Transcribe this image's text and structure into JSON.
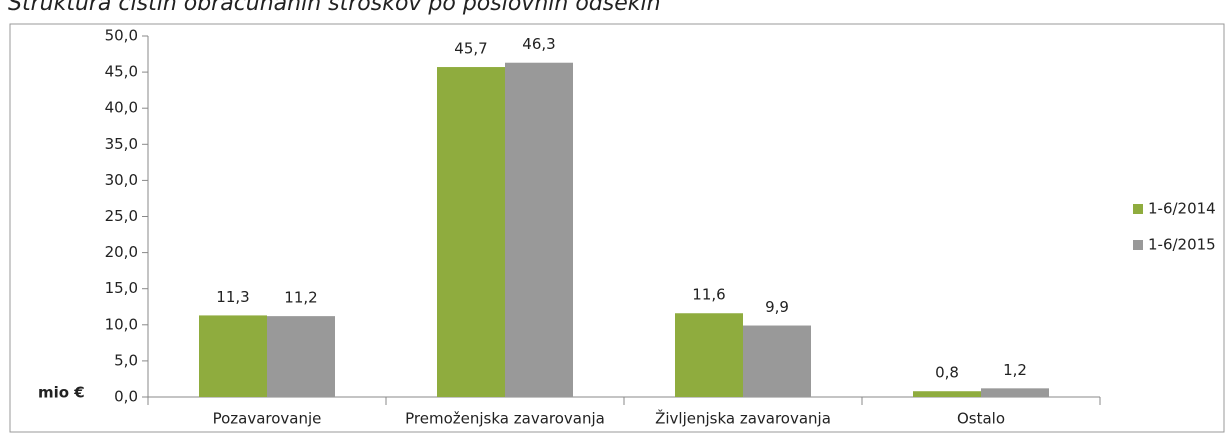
{
  "chart_data": {
    "type": "bar",
    "title": "Struktura čistih obračunanih stroškov po poslovnih odsekih",
    "y_axis_label": "mio €",
    "categories": [
      "Pozavarovanje",
      "Premoženjska zavarovanja",
      "Življenjska zavarovanja",
      "Ostalo"
    ],
    "series": [
      {
        "name": "1-6/2014",
        "color": "#8fac3e",
        "values": [
          11.3,
          45.7,
          11.6,
          0.8
        ],
        "value_labels": [
          "11,3",
          "45,7",
          "11,6",
          "0,8"
        ]
      },
      {
        "name": "1-6/2015",
        "color": "#999999",
        "values": [
          11.2,
          46.3,
          9.9,
          1.2
        ],
        "value_labels": [
          "11,2",
          "46,3",
          "9,9",
          "1,2"
        ]
      }
    ],
    "ylim": [
      0,
      50
    ],
    "yticks": [
      {
        "value": 0,
        "label": "0,0"
      },
      {
        "value": 5,
        "label": "5,0"
      },
      {
        "value": 10,
        "label": "10,0"
      },
      {
        "value": 15,
        "label": "15,0"
      },
      {
        "value": 20,
        "label": "20,0"
      },
      {
        "value": 25,
        "label": "25,0"
      },
      {
        "value": 30,
        "label": "30,0"
      },
      {
        "value": 35,
        "label": "35,0"
      },
      {
        "value": 40,
        "label": "40,0"
      },
      {
        "value": 45,
        "label": "45,0"
      },
      {
        "value": 50,
        "label": "50,0"
      }
    ],
    "legend": "right",
    "grid": false
  }
}
